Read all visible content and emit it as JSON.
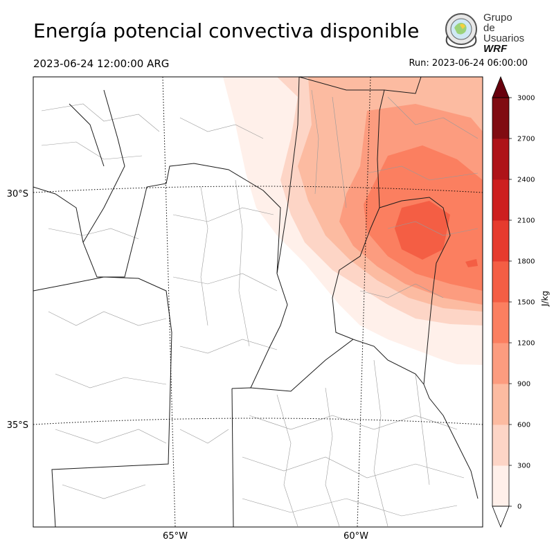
{
  "header": {
    "title": "Energía potencial convectiva disponible",
    "valid_time": "2023-06-24 12:00:00 ARG",
    "run_time": "Run: 2023-06-24 06:00:00"
  },
  "logo": {
    "line1": "Grupo de",
    "line2": "Usuarios",
    "line3": "WRF"
  },
  "map": {
    "lat_labels": [
      "30°S",
      "35°S"
    ],
    "lon_labels": [
      "65°W",
      "60°W"
    ]
  },
  "colorbar": {
    "unit": "J/kg",
    "ticks": [
      "0",
      "300",
      "600",
      "900",
      "1200",
      "1500",
      "1800",
      "2100",
      "2400",
      "2700",
      "3000"
    ],
    "colors": [
      "#fff0ea",
      "#fdd5c6",
      "#fcbba1",
      "#fc9c7f",
      "#fb7f60",
      "#f45e44",
      "#e63b2e",
      "#cd1f1f",
      "#ae1319",
      "#800c12"
    ],
    "under_color": "#ffffff",
    "over_color": "#67000d"
  }
}
